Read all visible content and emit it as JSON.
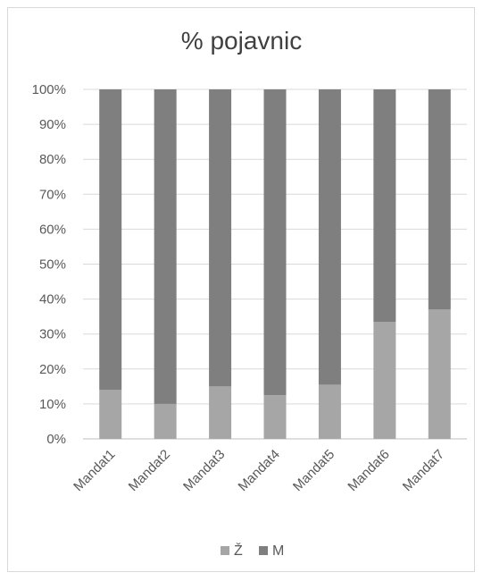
{
  "chart_data": {
    "type": "bar",
    "stacked": "percent",
    "title": "% pojavnic",
    "xlabel": "",
    "ylabel": "",
    "categories": [
      "Mandat1",
      "Mandat2",
      "Mandat3",
      "Mandat4",
      "Mandat5",
      "Mandat6",
      "Mandat7"
    ],
    "series": [
      {
        "name": "Ž",
        "color": "#a6a6a6",
        "values": [
          14,
          10,
          15,
          12.5,
          15.5,
          33.5,
          37
        ]
      },
      {
        "name": "M",
        "color": "#7f7f7f",
        "values": [
          86,
          90,
          85,
          87.5,
          84.5,
          66.5,
          63
        ]
      }
    ],
    "ylim": [
      0,
      100
    ],
    "yticks": [
      "0%",
      "10%",
      "20%",
      "30%",
      "40%",
      "50%",
      "60%",
      "70%",
      "80%",
      "90%",
      "100%"
    ],
    "grid": true,
    "legend": "bottom"
  }
}
